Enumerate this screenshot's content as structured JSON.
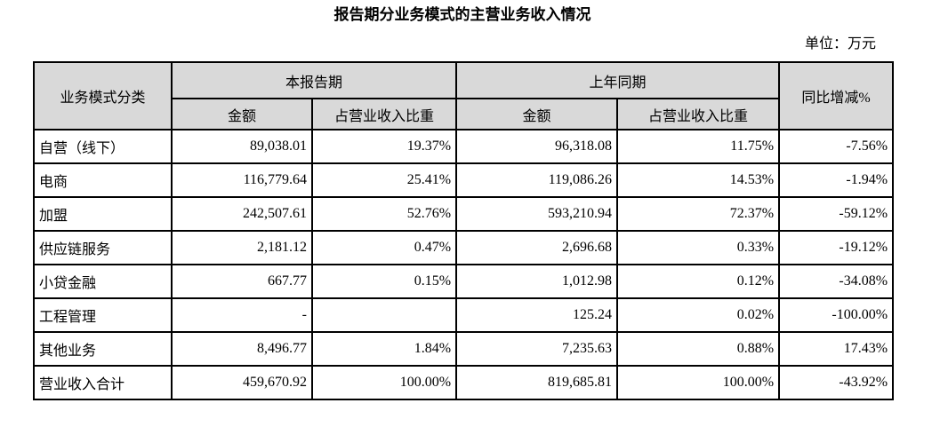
{
  "page": {
    "title": "报告期分业务模式的主营业务收入情况",
    "unit_label": "单位：万元"
  },
  "colors": {
    "header_bg": "#d9d9d9",
    "border": "#000000",
    "text": "#000000",
    "page_bg": "#ffffff"
  },
  "table": {
    "header": {
      "col_category": "业务模式分类",
      "group_current": "本报告期",
      "group_prior": "上年同期",
      "col_amount": "金额",
      "col_ratio": "占营业收入比重",
      "col_yoy": "同比增减%"
    },
    "rows": [
      {
        "category": "自营（线下）",
        "cur_amount": "89,038.01",
        "cur_ratio": "19.37%",
        "prior_amount": "96,318.08",
        "prior_ratio": "11.75%",
        "yoy": "-7.56%"
      },
      {
        "category": "电商",
        "cur_amount": "116,779.64",
        "cur_ratio": "25.41%",
        "prior_amount": "119,086.26",
        "prior_ratio": "14.53%",
        "yoy": "-1.94%"
      },
      {
        "category": "加盟",
        "cur_amount": "242,507.61",
        "cur_ratio": "52.76%",
        "prior_amount": "593,210.94",
        "prior_ratio": "72.37%",
        "yoy": "-59.12%"
      },
      {
        "category": "供应链服务",
        "cur_amount": "2,181.12",
        "cur_ratio": "0.47%",
        "prior_amount": "2,696.68",
        "prior_ratio": "0.33%",
        "yoy": "-19.12%"
      },
      {
        "category": "小贷金融",
        "cur_amount": "667.77",
        "cur_ratio": "0.15%",
        "prior_amount": "1,012.98",
        "prior_ratio": "0.12%",
        "yoy": "-34.08%"
      },
      {
        "category": "工程管理",
        "cur_amount": "-",
        "cur_ratio": "",
        "prior_amount": "125.24",
        "prior_ratio": "0.02%",
        "yoy": "-100.00%"
      },
      {
        "category": "其他业务",
        "cur_amount": "8,496.77",
        "cur_ratio": "1.84%",
        "prior_amount": "7,235.63",
        "prior_ratio": "0.88%",
        "yoy": "17.43%"
      },
      {
        "category": "营业收入合计",
        "cur_amount": "459,670.92",
        "cur_ratio": "100.00%",
        "prior_amount": "819,685.81",
        "prior_ratio": "100.00%",
        "yoy": "-43.92%"
      }
    ]
  }
}
